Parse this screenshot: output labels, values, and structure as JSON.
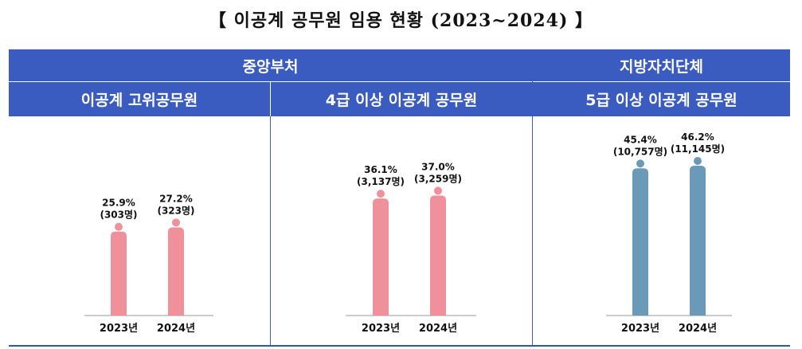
{
  "title": "【 이공계 공무원 임용 현황 (2023~2024) 】",
  "groups": [
    {
      "label": "중앙부처"
    },
    {
      "label": "지방자치단체"
    }
  ],
  "panels": [
    {
      "label": "이공계 고위공무원"
    },
    {
      "label": "4급 이상 이공계 공무원"
    },
    {
      "label": "5급 이상 이공계 공무원"
    }
  ],
  "colors": {
    "header": "#3a5bbf",
    "pink": "#f0909a",
    "blue": "#6a9ab8",
    "axis": "#cccccc"
  },
  "chart_data": [
    {
      "type": "bar",
      "title": "이공계 고위공무원",
      "categories": [
        "2023년",
        "2024년"
      ],
      "values": [
        25.9,
        27.2
      ],
      "data_labels": [
        [
          "25.9%",
          "(303명)"
        ],
        [
          "27.2%",
          "(323명)"
        ]
      ],
      "color": "pink"
    },
    {
      "type": "bar",
      "title": "4급 이상 이공계 공무원",
      "categories": [
        "2023년",
        "2024년"
      ],
      "values": [
        36.1,
        37.0
      ],
      "data_labels": [
        [
          "36.1%",
          "(3,137명)"
        ],
        [
          "37.0%",
          "(3,259명)"
        ]
      ],
      "color": "pink"
    },
    {
      "type": "bar",
      "title": "5급 이상 이공계 공무원",
      "categories": [
        "2023년",
        "2024년"
      ],
      "values": [
        45.4,
        46.2
      ],
      "data_labels": [
        [
          "45.4%",
          "(10,757명)"
        ],
        [
          "46.2%",
          "(11,145명)"
        ]
      ],
      "color": "blue"
    }
  ]
}
